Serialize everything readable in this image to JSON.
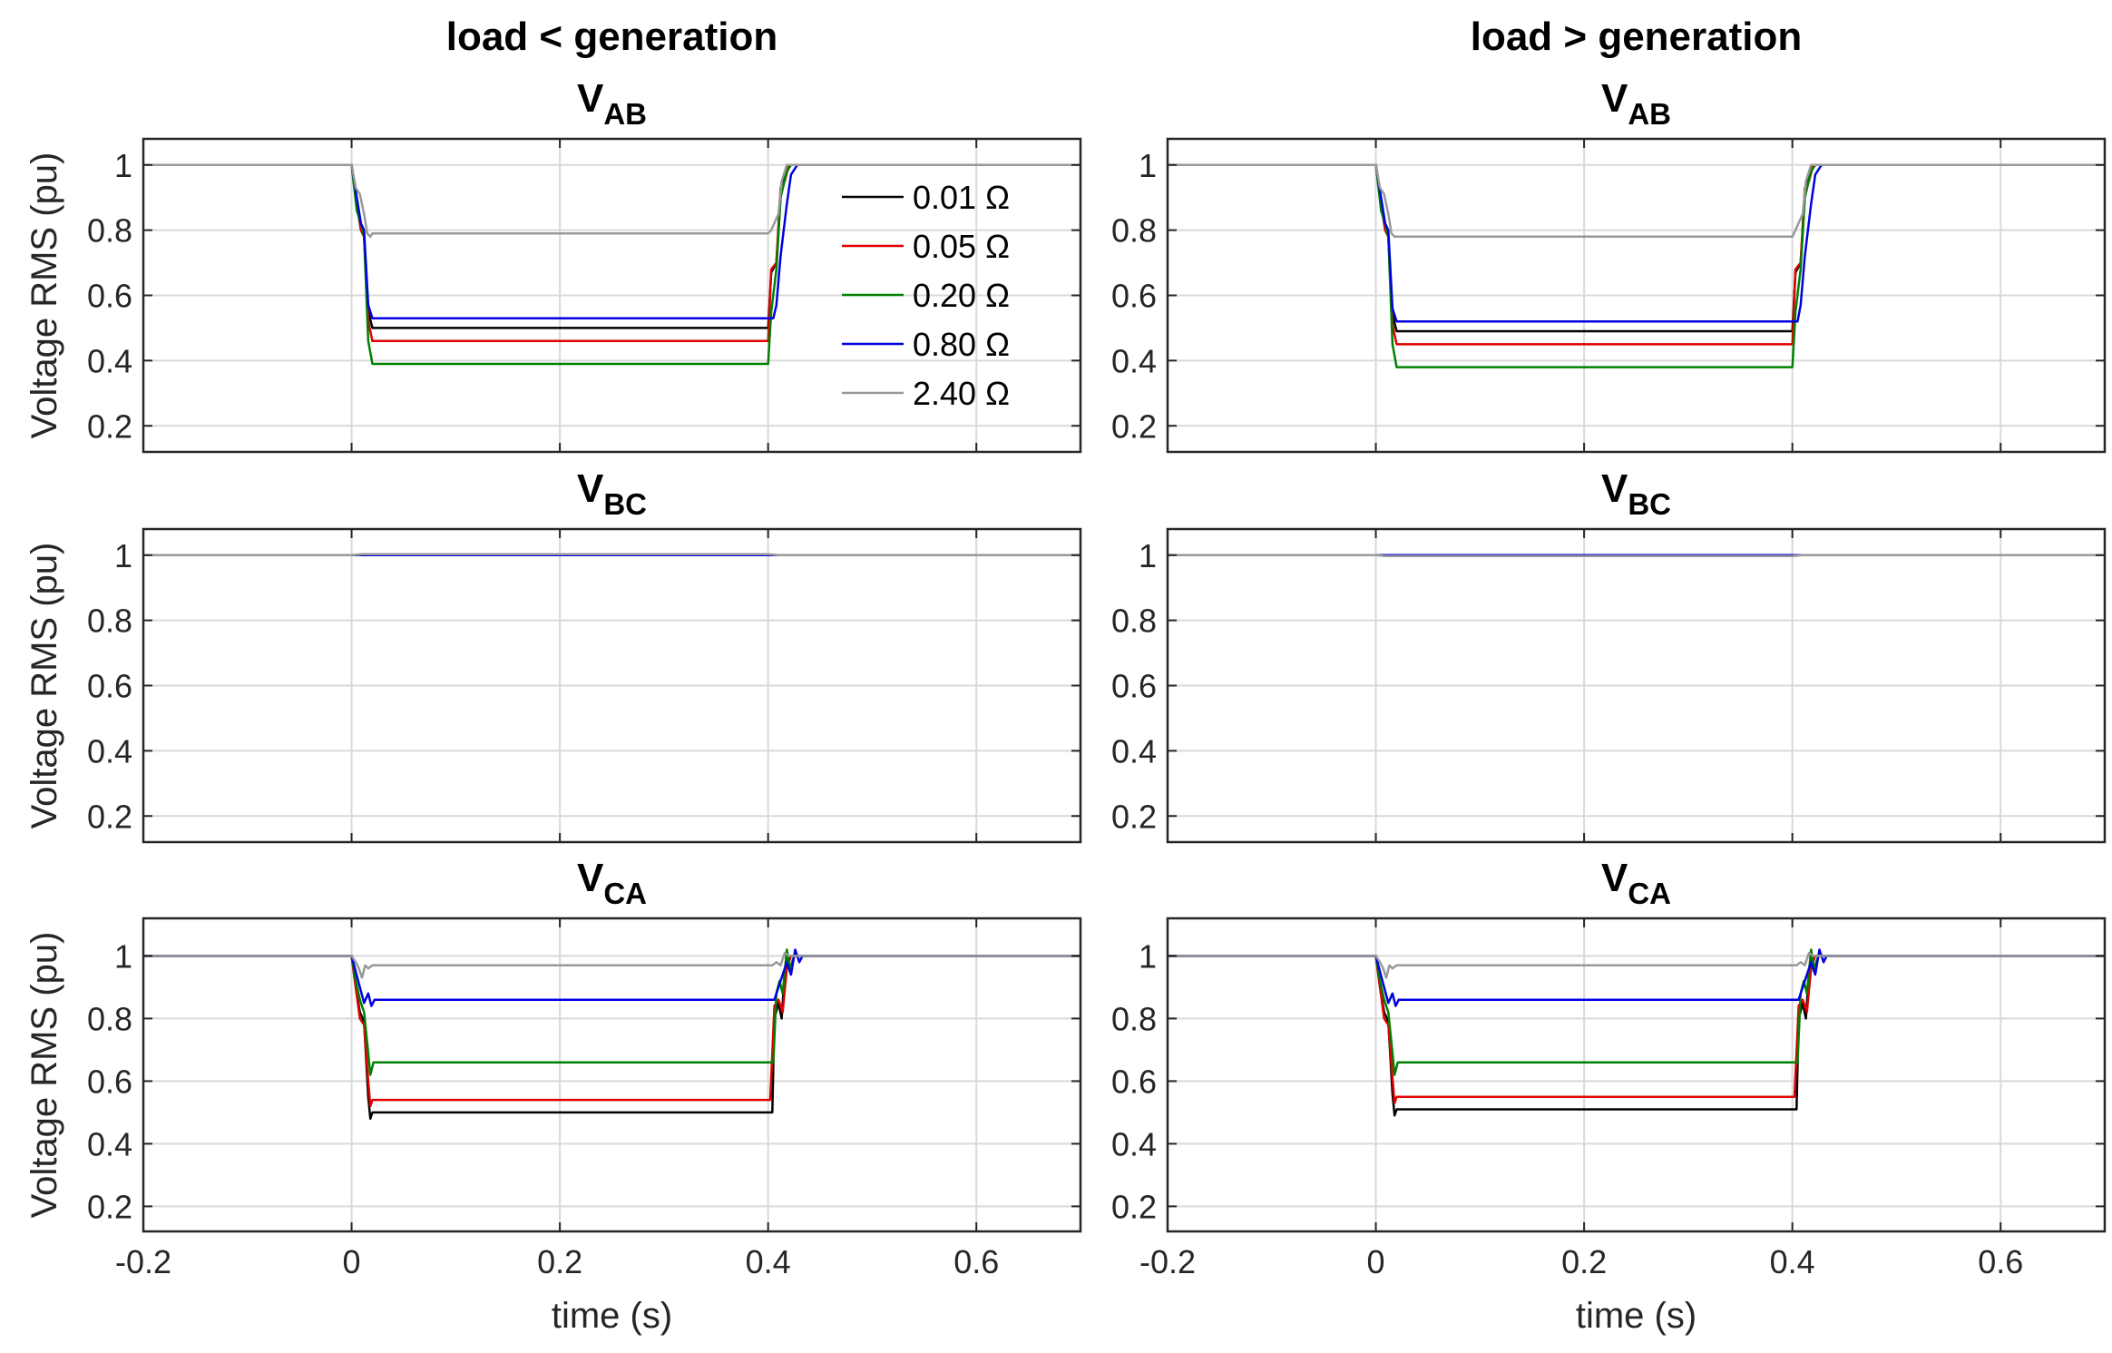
{
  "chart_data": [
    {
      "type": "line",
      "column_title": "load < generation",
      "title": {
        "main": "V",
        "sub": "AB"
      },
      "ylabel": "Voltage RMS (pu)",
      "xlabel": "",
      "xlim": [
        -0.2,
        0.7
      ],
      "ylim": [
        0.12,
        1.08
      ],
      "xticks": [
        "-0.2",
        "0",
        "0.2",
        "0.4",
        "0.6"
      ],
      "yticks": [
        "0.2",
        "0.4",
        "0.6",
        "0.8",
        "1"
      ],
      "legend": {
        "location": "top-right",
        "items": [
          "0.01 Ω",
          "0.05 Ω",
          "0.20 Ω",
          "0.80 Ω",
          "2.40 Ω"
        ]
      },
      "series": [
        {
          "name": "0.01 Ω",
          "color": "#000000",
          "x": [
            -0.2,
            0.0,
            0.005,
            0.009,
            0.012,
            0.016,
            0.02,
            0.025,
            0.4,
            0.403,
            0.408,
            0.412,
            0.416,
            0.42,
            0.7
          ],
          "y": [
            1,
            1,
            0.88,
            0.8,
            0.78,
            0.55,
            0.5,
            0.5,
            0.5,
            0.67,
            0.7,
            0.9,
            0.97,
            1,
            1
          ]
        },
        {
          "name": "0.05 Ω",
          "color": "#e00000",
          "x": [
            -0.2,
            0.0,
            0.005,
            0.009,
            0.012,
            0.016,
            0.02,
            0.025,
            0.4,
            0.403,
            0.408,
            0.412,
            0.416,
            0.42,
            0.7
          ],
          "y": [
            1,
            1,
            0.88,
            0.8,
            0.78,
            0.52,
            0.46,
            0.46,
            0.46,
            0.68,
            0.7,
            0.93,
            0.95,
            1,
            1
          ]
        },
        {
          "name": "0.20 Ω",
          "color": "#008000",
          "x": [
            -0.2,
            0.0,
            0.005,
            0.009,
            0.012,
            0.016,
            0.02,
            0.025,
            0.4,
            0.403,
            0.408,
            0.412,
            0.418,
            0.422,
            0.7
          ],
          "y": [
            1,
            1,
            0.86,
            0.82,
            0.78,
            0.46,
            0.39,
            0.39,
            0.39,
            0.55,
            0.68,
            0.9,
            0.98,
            1,
            1
          ]
        },
        {
          "name": "0.80 Ω",
          "color": "#0000e0",
          "x": [
            -0.2,
            0.0,
            0.005,
            0.009,
            0.012,
            0.016,
            0.02,
            0.025,
            0.405,
            0.408,
            0.412,
            0.418,
            0.422,
            0.428,
            0.7
          ],
          "y": [
            1,
            1,
            0.9,
            0.82,
            0.8,
            0.57,
            0.53,
            0.53,
            0.53,
            0.57,
            0.72,
            0.88,
            0.97,
            1,
            1
          ]
        },
        {
          "name": "2.40 Ω",
          "color": "#999999",
          "x": [
            -0.2,
            0.0,
            0.004,
            0.008,
            0.012,
            0.015,
            0.018,
            0.02,
            0.4,
            0.403,
            0.41,
            0.413,
            0.418,
            0.7
          ],
          "y": [
            1,
            1,
            0.93,
            0.91,
            0.85,
            0.79,
            0.78,
            0.79,
            0.79,
            0.8,
            0.85,
            0.95,
            1,
            1
          ]
        }
      ]
    },
    {
      "type": "line",
      "column_title": "load > generation",
      "title": {
        "main": "V",
        "sub": "AB"
      },
      "ylabel": "",
      "xlabel": "",
      "xlim": [
        -0.2,
        0.7
      ],
      "ylim": [
        0.12,
        1.08
      ],
      "xticks": [
        "-0.2",
        "0",
        "0.2",
        "0.4",
        "0.6"
      ],
      "yticks": [
        "0.2",
        "0.4",
        "0.6",
        "0.8",
        "1"
      ],
      "series": [
        {
          "name": "0.01 Ω",
          "color": "#000000",
          "x": [
            -0.2,
            0.0,
            0.005,
            0.009,
            0.012,
            0.016,
            0.02,
            0.025,
            0.4,
            0.403,
            0.408,
            0.412,
            0.416,
            0.42,
            0.7
          ],
          "y": [
            1,
            1,
            0.88,
            0.8,
            0.78,
            0.54,
            0.49,
            0.49,
            0.49,
            0.67,
            0.7,
            0.9,
            0.97,
            1,
            1
          ]
        },
        {
          "name": "0.05 Ω",
          "color": "#e00000",
          "x": [
            -0.2,
            0.0,
            0.005,
            0.009,
            0.012,
            0.016,
            0.02,
            0.025,
            0.4,
            0.403,
            0.408,
            0.412,
            0.416,
            0.42,
            0.7
          ],
          "y": [
            1,
            1,
            0.88,
            0.8,
            0.78,
            0.51,
            0.45,
            0.45,
            0.45,
            0.68,
            0.7,
            0.93,
            0.95,
            1,
            1
          ]
        },
        {
          "name": "0.20 Ω",
          "color": "#008000",
          "x": [
            -0.2,
            0.0,
            0.005,
            0.009,
            0.012,
            0.016,
            0.02,
            0.025,
            0.4,
            0.403,
            0.408,
            0.412,
            0.418,
            0.422,
            0.7
          ],
          "y": [
            1,
            1,
            0.86,
            0.82,
            0.78,
            0.45,
            0.38,
            0.38,
            0.38,
            0.55,
            0.68,
            0.9,
            0.98,
            1,
            1
          ]
        },
        {
          "name": "0.80 Ω",
          "color": "#0000e0",
          "x": [
            -0.2,
            0.0,
            0.005,
            0.009,
            0.012,
            0.016,
            0.02,
            0.025,
            0.405,
            0.408,
            0.412,
            0.418,
            0.422,
            0.428,
            0.7
          ],
          "y": [
            1,
            1,
            0.9,
            0.82,
            0.8,
            0.56,
            0.52,
            0.52,
            0.52,
            0.57,
            0.72,
            0.88,
            0.97,
            1,
            1
          ]
        },
        {
          "name": "2.40 Ω",
          "color": "#999999",
          "x": [
            -0.2,
            0.0,
            0.004,
            0.008,
            0.012,
            0.015,
            0.018,
            0.02,
            0.4,
            0.403,
            0.41,
            0.413,
            0.418,
            0.7
          ],
          "y": [
            1,
            1,
            0.93,
            0.91,
            0.85,
            0.79,
            0.78,
            0.78,
            0.78,
            0.8,
            0.85,
            0.95,
            1,
            1
          ]
        }
      ]
    },
    {
      "type": "line",
      "title": {
        "main": "V",
        "sub": "BC"
      },
      "ylabel": "Voltage RMS (pu)",
      "xlabel": "",
      "xlim": [
        -0.2,
        0.7
      ],
      "ylim": [
        0.12,
        1.08
      ],
      "xticks": [
        "-0.2",
        "0",
        "0.2",
        "0.4",
        "0.6"
      ],
      "yticks": [
        "0.2",
        "0.4",
        "0.6",
        "0.8",
        "1"
      ],
      "series": [
        {
          "name": "0.01 Ω",
          "color": "#000000",
          "x": [
            -0.2,
            0.7
          ],
          "y": [
            1,
            1
          ]
        },
        {
          "name": "0.05 Ω",
          "color": "#e00000",
          "x": [
            -0.2,
            0.7
          ],
          "y": [
            1,
            1
          ]
        },
        {
          "name": "0.20 Ω",
          "color": "#008000",
          "x": [
            -0.2,
            0.7
          ],
          "y": [
            1,
            1
          ]
        },
        {
          "name": "0.80 Ω",
          "color": "#0000e0",
          "x": [
            -0.2,
            0.7
          ],
          "y": [
            1,
            1
          ]
        },
        {
          "name": "2.40 Ω",
          "color": "#999999",
          "x": [
            -0.2,
            0.0,
            0.01,
            0.4,
            0.41,
            0.7
          ],
          "y": [
            1,
            1,
            1.003,
            1.003,
            1,
            1
          ]
        }
      ]
    },
    {
      "type": "line",
      "title": {
        "main": "V",
        "sub": "BC"
      },
      "ylabel": "",
      "xlabel": "",
      "xlim": [
        -0.2,
        0.7
      ],
      "ylim": [
        0.12,
        1.08
      ],
      "xticks": [
        "-0.2",
        "0",
        "0.2",
        "0.4",
        "0.6"
      ],
      "yticks": [
        "0.2",
        "0.4",
        "0.6",
        "0.8",
        "1"
      ],
      "series": [
        {
          "name": "0.01 Ω",
          "color": "#000000",
          "x": [
            -0.2,
            0.7
          ],
          "y": [
            1,
            1
          ]
        },
        {
          "name": "0.05 Ω",
          "color": "#e00000",
          "x": [
            -0.2,
            0.7
          ],
          "y": [
            1,
            1
          ]
        },
        {
          "name": "0.20 Ω",
          "color": "#008000",
          "x": [
            -0.2,
            0.7
          ],
          "y": [
            1,
            1
          ]
        },
        {
          "name": "0.80 Ω",
          "color": "#0000e0",
          "x": [
            -0.2,
            0.7
          ],
          "y": [
            1,
            1
          ]
        },
        {
          "name": "2.40 Ω",
          "color": "#999999",
          "x": [
            -0.2,
            0.0,
            0.01,
            0.4,
            0.41,
            0.7
          ],
          "y": [
            1,
            1,
            0.997,
            0.997,
            1,
            1
          ]
        }
      ]
    },
    {
      "type": "line",
      "title": {
        "main": "V",
        "sub": "CA"
      },
      "ylabel": "Voltage RMS (pu)",
      "xlabel": "time (s)",
      "xlim": [
        -0.2,
        0.7
      ],
      "ylim": [
        0.12,
        1.12
      ],
      "xticks": [
        "-0.2",
        "0",
        "0.2",
        "0.4",
        "0.6"
      ],
      "yticks": [
        "0.2",
        "0.4",
        "0.6",
        "0.8",
        "1"
      ],
      "series": [
        {
          "name": "0.01 Ω",
          "color": "#000000",
          "x": [
            -0.2,
            0.0,
            0.004,
            0.008,
            0.012,
            0.016,
            0.018,
            0.02,
            0.024,
            0.404,
            0.406,
            0.41,
            0.413,
            0.416,
            0.42,
            0.7
          ],
          "y": [
            1,
            1,
            0.9,
            0.82,
            0.79,
            0.55,
            0.48,
            0.5,
            0.5,
            0.5,
            0.8,
            0.85,
            0.8,
            0.95,
            1,
            1
          ]
        },
        {
          "name": "0.05 Ω",
          "color": "#e00000",
          "x": [
            -0.2,
            0.0,
            0.004,
            0.008,
            0.012,
            0.016,
            0.018,
            0.02,
            0.024,
            0.402,
            0.406,
            0.41,
            0.414,
            0.418,
            0.422,
            0.7
          ],
          "y": [
            1,
            1,
            0.9,
            0.8,
            0.78,
            0.6,
            0.52,
            0.54,
            0.54,
            0.54,
            0.84,
            0.86,
            0.82,
            0.96,
            1,
            1
          ]
        },
        {
          "name": "0.20 Ω",
          "color": "#008000",
          "x": [
            -0.2,
            0.0,
            0.004,
            0.008,
            0.012,
            0.016,
            0.018,
            0.021,
            0.026,
            0.405,
            0.408,
            0.411,
            0.414,
            0.418,
            0.421,
            0.425,
            0.7
          ],
          "y": [
            1,
            1,
            0.92,
            0.86,
            0.82,
            0.69,
            0.62,
            0.66,
            0.66,
            0.66,
            0.88,
            0.92,
            0.88,
            1.02,
            0.96,
            1,
            1
          ]
        },
        {
          "name": "0.80 Ω",
          "color": "#0000e0",
          "x": [
            -0.2,
            0.0,
            0.004,
            0.008,
            0.012,
            0.016,
            0.019,
            0.022,
            0.026,
            0.406,
            0.41,
            0.414,
            0.418,
            0.422,
            0.426,
            0.43,
            0.433,
            0.7
          ],
          "y": [
            1,
            1,
            0.95,
            0.9,
            0.85,
            0.88,
            0.84,
            0.86,
            0.86,
            0.86,
            0.9,
            0.94,
            0.98,
            0.94,
            1.02,
            0.98,
            1,
            1
          ]
        },
        {
          "name": "2.40 Ω",
          "color": "#999999",
          "x": [
            -0.2,
            0.0,
            0.004,
            0.007,
            0.01,
            0.013,
            0.016,
            0.02,
            0.404,
            0.408,
            0.412,
            0.416,
            0.42,
            0.7
          ],
          "y": [
            1,
            1,
            0.98,
            0.96,
            0.93,
            0.97,
            0.96,
            0.97,
            0.97,
            0.98,
            0.97,
            1.01,
            1,
            1
          ]
        }
      ]
    },
    {
      "type": "line",
      "title": {
        "main": "V",
        "sub": "CA"
      },
      "ylabel": "",
      "xlabel": "time (s)",
      "xlim": [
        -0.2,
        0.7
      ],
      "ylim": [
        0.12,
        1.12
      ],
      "xticks": [
        "-0.2",
        "0",
        "0.2",
        "0.4",
        "0.6"
      ],
      "yticks": [
        "0.2",
        "0.4",
        "0.6",
        "0.8",
        "1"
      ],
      "series": [
        {
          "name": "0.01 Ω",
          "color": "#000000",
          "x": [
            -0.2,
            0.0,
            0.004,
            0.008,
            0.012,
            0.016,
            0.018,
            0.02,
            0.024,
            0.404,
            0.406,
            0.41,
            0.413,
            0.416,
            0.42,
            0.7
          ],
          "y": [
            1,
            1,
            0.9,
            0.82,
            0.79,
            0.56,
            0.49,
            0.51,
            0.51,
            0.51,
            0.8,
            0.85,
            0.8,
            0.95,
            1,
            1
          ]
        },
        {
          "name": "0.05 Ω",
          "color": "#e00000",
          "x": [
            -0.2,
            0.0,
            0.004,
            0.008,
            0.012,
            0.016,
            0.018,
            0.02,
            0.024,
            0.402,
            0.406,
            0.41,
            0.414,
            0.418,
            0.422,
            0.7
          ],
          "y": [
            1,
            1,
            0.9,
            0.8,
            0.78,
            0.61,
            0.53,
            0.55,
            0.55,
            0.55,
            0.84,
            0.86,
            0.82,
            0.96,
            1,
            1
          ]
        },
        {
          "name": "0.20 Ω",
          "color": "#008000",
          "x": [
            -0.2,
            0.0,
            0.004,
            0.008,
            0.012,
            0.016,
            0.018,
            0.021,
            0.026,
            0.405,
            0.408,
            0.411,
            0.414,
            0.418,
            0.421,
            0.425,
            0.7
          ],
          "y": [
            1,
            1,
            0.92,
            0.86,
            0.82,
            0.69,
            0.62,
            0.66,
            0.66,
            0.66,
            0.88,
            0.92,
            0.88,
            1.02,
            0.96,
            1,
            1
          ]
        },
        {
          "name": "0.80 Ω",
          "color": "#0000e0",
          "x": [
            -0.2,
            0.0,
            0.004,
            0.008,
            0.012,
            0.016,
            0.019,
            0.022,
            0.026,
            0.406,
            0.41,
            0.414,
            0.418,
            0.422,
            0.426,
            0.43,
            0.433,
            0.7
          ],
          "y": [
            1,
            1,
            0.95,
            0.9,
            0.85,
            0.88,
            0.84,
            0.86,
            0.86,
            0.86,
            0.9,
            0.94,
            0.98,
            0.94,
            1.02,
            0.98,
            1,
            1
          ]
        },
        {
          "name": "2.40 Ω",
          "color": "#999999",
          "x": [
            -0.2,
            0.0,
            0.004,
            0.007,
            0.01,
            0.013,
            0.016,
            0.02,
            0.404,
            0.408,
            0.412,
            0.416,
            0.42,
            0.7
          ],
          "y": [
            1,
            1,
            0.98,
            0.96,
            0.93,
            0.97,
            0.96,
            0.97,
            0.97,
            0.98,
            0.97,
            1.01,
            1,
            1
          ]
        }
      ]
    }
  ]
}
